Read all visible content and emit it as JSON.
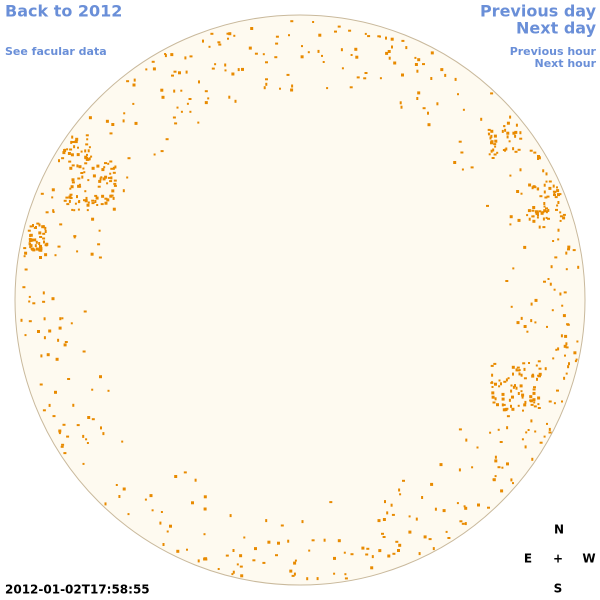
{
  "links": {
    "back": "Back to 2012",
    "facular": "See facular data",
    "previous_day": "Previous day",
    "next_day": "Next day",
    "previous_hour": "Previous hour",
    "next_hour": "Next hour"
  },
  "timestamp": "2012-01-02T17:58:55",
  "compass": {
    "north": "N",
    "east": "E",
    "center": "+",
    "west": "W",
    "south": "S"
  }
}
